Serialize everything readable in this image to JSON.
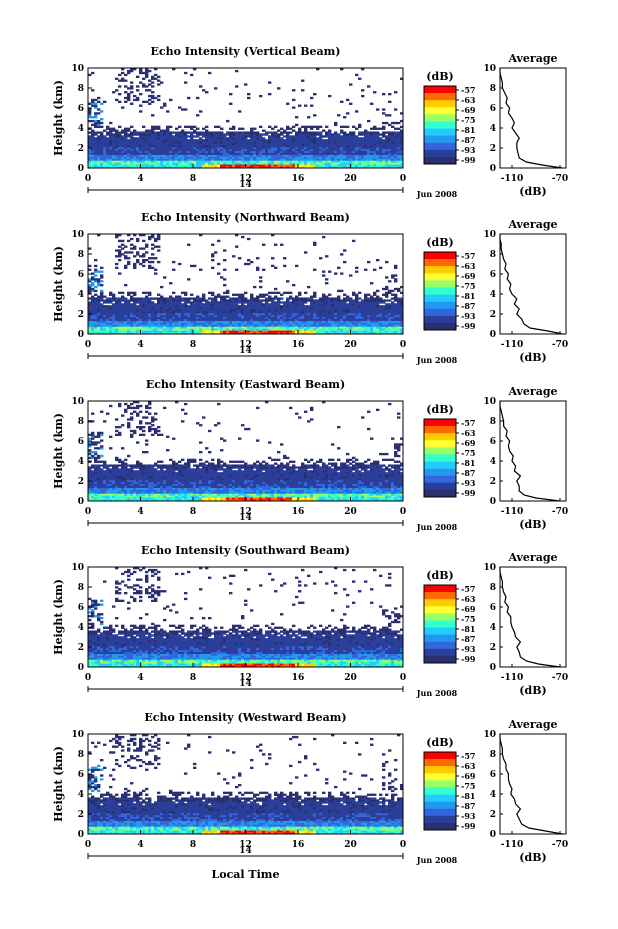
{
  "chart_data": {
    "type": "heatmap",
    "date_label": "Jun 2008",
    "xlabel": "Local Time",
    "ylabel": "Height (km)",
    "x_ticks": [
      "0",
      "4",
      "8",
      "12",
      "16",
      "20",
      "0"
    ],
    "x_range": [
      0,
      24
    ],
    "y_ticks": [
      "0",
      "2",
      "4",
      "6",
      "8",
      "10"
    ],
    "y_range": [
      0,
      10
    ],
    "day_label": "14",
    "colorbar": {
      "unit": "(dB)",
      "ticks": [
        "-57",
        "-63",
        "-69",
        "-75",
        "-81",
        "-87",
        "-93",
        "-99"
      ],
      "colors": [
        "#ff0000",
        "#ff6a00",
        "#ffcc00",
        "#ffff33",
        "#99ff66",
        "#33ffcc",
        "#22ccff",
        "#2299ee",
        "#3366dd",
        "#2a3f9a",
        "#2a2f70"
      ]
    },
    "average_panel": {
      "title": "Average",
      "xlabel": "(dB)",
      "x_ticks": [
        "-110",
        "-70"
      ],
      "x_range": [
        -120,
        -65
      ],
      "y_ticks": [
        "0",
        "2",
        "4",
        "6",
        "8",
        "10"
      ]
    },
    "panels": [
      {
        "title": "Echo Intensity (Vertical Beam)",
        "profile": [
          [
            -68,
            0
          ],
          [
            -85,
            0.3
          ],
          [
            -98,
            0.6
          ],
          [
            -104,
            1
          ],
          [
            -105,
            1.5
          ],
          [
            -106,
            2
          ],
          [
            -106,
            2.5
          ],
          [
            -104,
            3
          ],
          [
            -107,
            3.5
          ],
          [
            -110,
            4
          ],
          [
            -108,
            4.5
          ],
          [
            -110,
            5
          ],
          [
            -113,
            5.5
          ],
          [
            -112,
            6
          ],
          [
            -115,
            6.5
          ],
          [
            -114,
            7
          ],
          [
            -116,
            7.5
          ],
          [
            -118,
            8
          ],
          [
            -118,
            8.5
          ],
          [
            -119,
            9
          ],
          [
            -120,
            9.5
          ],
          [
            -120,
            10
          ]
        ]
      },
      {
        "title": "Echo Intensity (Northward Beam)",
        "profile": [
          [
            -68,
            0
          ],
          [
            -80,
            0.3
          ],
          [
            -95,
            0.6
          ],
          [
            -100,
            1
          ],
          [
            -102,
            1.5
          ],
          [
            -106,
            2
          ],
          [
            -104,
            2.5
          ],
          [
            -108,
            3
          ],
          [
            -106,
            3.5
          ],
          [
            -110,
            4
          ],
          [
            -112,
            4.5
          ],
          [
            -111,
            5
          ],
          [
            -114,
            5.5
          ],
          [
            -113,
            6
          ],
          [
            -116,
            6.5
          ],
          [
            -115,
            7
          ],
          [
            -117,
            7.5
          ],
          [
            -118,
            8
          ],
          [
            -119,
            8.5
          ],
          [
            -119,
            9
          ],
          [
            -120,
            9.5
          ],
          [
            -120,
            10
          ]
        ]
      },
      {
        "title": "Echo Intensity (Eastward Beam)",
        "profile": [
          [
            -70,
            0
          ],
          [
            -90,
            0.3
          ],
          [
            -100,
            0.6
          ],
          [
            -104,
            1
          ],
          [
            -104,
            1.5
          ],
          [
            -106,
            2
          ],
          [
            -103,
            2.5
          ],
          [
            -108,
            3
          ],
          [
            -107,
            3.5
          ],
          [
            -110,
            4
          ],
          [
            -109,
            4.5
          ],
          [
            -112,
            5
          ],
          [
            -113,
            5.5
          ],
          [
            -112,
            6
          ],
          [
            -115,
            6.5
          ],
          [
            -114,
            7
          ],
          [
            -117,
            7.5
          ],
          [
            -117,
            8
          ],
          [
            -118,
            8.5
          ],
          [
            -119,
            9
          ],
          [
            -120,
            9.5
          ],
          [
            -120,
            10
          ]
        ]
      },
      {
        "title": "Echo Intensity (Southward Beam)",
        "profile": [
          [
            -70,
            0
          ],
          [
            -88,
            0.3
          ],
          [
            -98,
            0.6
          ],
          [
            -103,
            1
          ],
          [
            -104,
            1.5
          ],
          [
            -106,
            2
          ],
          [
            -103,
            2.5
          ],
          [
            -107,
            3
          ],
          [
            -108,
            3.5
          ],
          [
            -110,
            4
          ],
          [
            -111,
            4.5
          ],
          [
            -111,
            5
          ],
          [
            -114,
            5.5
          ],
          [
            -113,
            6
          ],
          [
            -116,
            6.5
          ],
          [
            -115,
            7
          ],
          [
            -117,
            7.5
          ],
          [
            -118,
            8
          ],
          [
            -118,
            8.5
          ],
          [
            -119,
            9
          ],
          [
            -120,
            9.5
          ],
          [
            -120,
            10
          ]
        ]
      },
      {
        "title": "Echo Intensity (Westward Beam)",
        "profile": [
          [
            -68,
            0
          ],
          [
            -82,
            0.3
          ],
          [
            -96,
            0.6
          ],
          [
            -102,
            1
          ],
          [
            -104,
            1.5
          ],
          [
            -106,
            2
          ],
          [
            -103,
            2.5
          ],
          [
            -107,
            3
          ],
          [
            -108,
            3.5
          ],
          [
            -111,
            4
          ],
          [
            -110,
            4.5
          ],
          [
            -112,
            5
          ],
          [
            -113,
            5.5
          ],
          [
            -113,
            6
          ],
          [
            -115,
            6.5
          ],
          [
            -115,
            7
          ],
          [
            -117,
            7.5
          ],
          [
            -118,
            8
          ],
          [
            -118,
            8.5
          ],
          [
            -119,
            9
          ],
          [
            -120,
            9.5
          ],
          [
            -120,
            10
          ]
        ]
      }
    ]
  }
}
